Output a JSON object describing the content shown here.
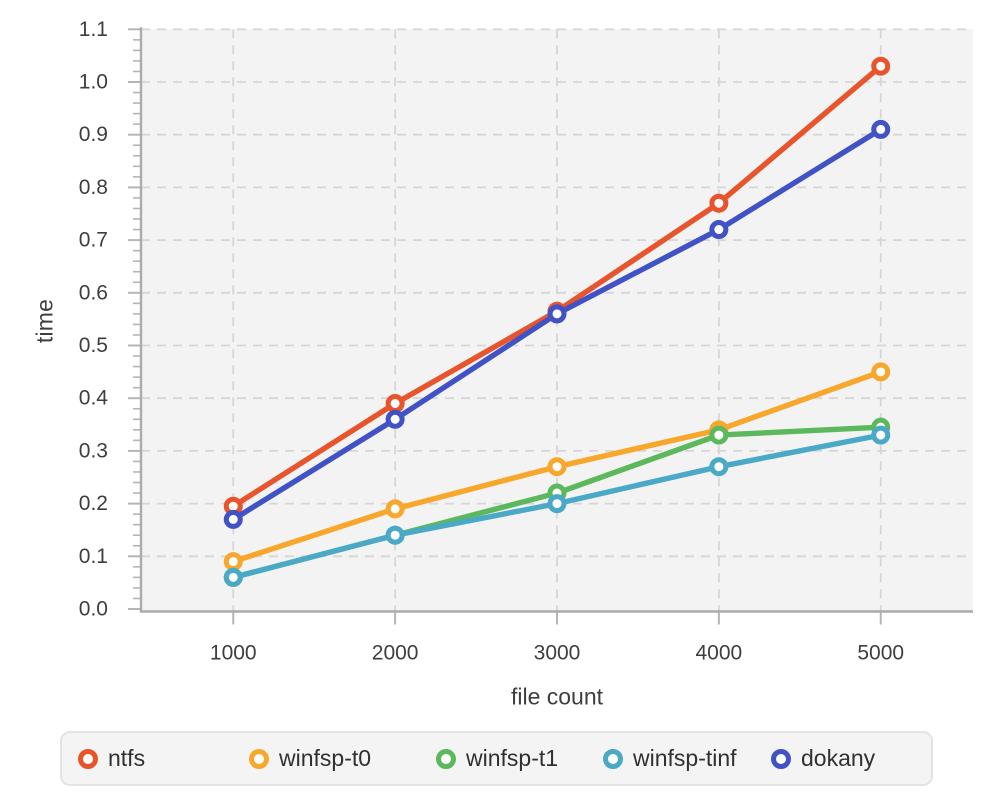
{
  "chart_data": {
    "type": "line",
    "title": "",
    "xlabel": "file count",
    "ylabel": "time",
    "x": [
      1000,
      2000,
      3000,
      4000,
      5000
    ],
    "x_tick_labels": [
      "1000",
      "2000",
      "3000",
      "4000",
      "5000"
    ],
    "y_tick_labels": [
      "0.0",
      "0.1",
      "0.2",
      "0.3",
      "0.4",
      "0.5",
      "0.6",
      "0.7",
      "0.8",
      "0.9",
      "1.0",
      "1.1"
    ],
    "y_tick_values": [
      0.0,
      0.1,
      0.2,
      0.3,
      0.4,
      0.5,
      0.6,
      0.7,
      0.8,
      0.9,
      1.0,
      1.1
    ],
    "y_minor_tick_step": 0.02,
    "xlim": [
      430,
      5570
    ],
    "ylim": [
      0,
      1.1
    ],
    "grid": true,
    "grid_style": "dashed",
    "legend_position": "bottom",
    "marker": "open-circle",
    "series": [
      {
        "name": "ntfs",
        "color": "#e8552c",
        "values": [
          0.195,
          0.39,
          0.565,
          0.77,
          1.03
        ]
      },
      {
        "name": "winfsp-t0",
        "color": "#f7a72b",
        "values": [
          0.09,
          0.19,
          0.27,
          0.34,
          0.45
        ]
      },
      {
        "name": "winfsp-t1",
        "color": "#5bb85c",
        "values": [
          0.06,
          0.14,
          0.22,
          0.33,
          0.345
        ]
      },
      {
        "name": "winfsp-tinf",
        "color": "#4aa9c6",
        "values": [
          0.06,
          0.14,
          0.2,
          0.27,
          0.33
        ]
      },
      {
        "name": "dokany",
        "color": "#4152c6",
        "values": [
          0.17,
          0.36,
          0.56,
          0.72,
          0.91
        ]
      }
    ]
  },
  "styles": {
    "plot_bg": "#f3f3f3",
    "grid_color": "#d6d6d6",
    "axis_color": "#ababab",
    "tick_color": "#b5b5b5",
    "tick_text_color": "#3e3e3e",
    "legend_bg": "#f4f4f4",
    "legend_border": "#e3e3e3",
    "legend_text": "#303030",
    "marker_fill": "#ffffff"
  }
}
